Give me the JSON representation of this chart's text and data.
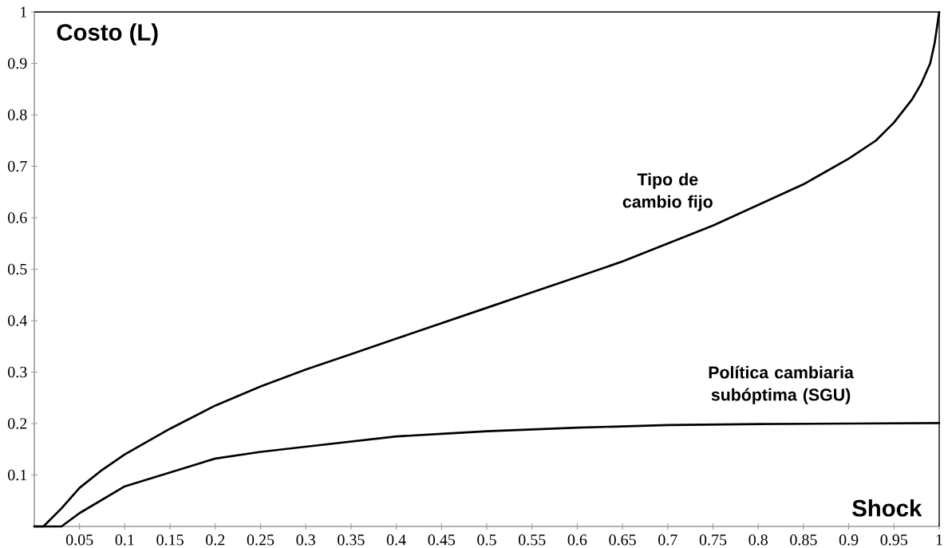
{
  "chart_data": {
    "type": "line",
    "xlabel": "Shock",
    "ylabel": "Costo (L)",
    "xlim": [
      0,
      1
    ],
    "ylim": [
      0,
      1
    ],
    "xticks": [
      0.05,
      0.1,
      0.15,
      0.2,
      0.25,
      0.3,
      0.35,
      0.4,
      0.45,
      0.5,
      0.55,
      0.6,
      0.65,
      0.7,
      0.75,
      0.8,
      0.85,
      0.9,
      0.95,
      1
    ],
    "yticks": [
      0.1,
      0.2,
      0.3,
      0.4,
      0.5,
      0.6,
      0.7,
      0.8,
      0.9,
      1
    ],
    "line_style": "solid",
    "series": [
      {
        "name": "Tipo de cambio fijo",
        "color": "#000000",
        "x": [
          0,
          0.01,
          0.03,
          0.05,
          0.075,
          0.1,
          0.15,
          0.2,
          0.25,
          0.3,
          0.35,
          0.4,
          0.45,
          0.5,
          0.55,
          0.6,
          0.65,
          0.7,
          0.75,
          0.8,
          0.85,
          0.9,
          0.93,
          0.95,
          0.97,
          0.98,
          0.99,
          0.995,
          1
        ],
        "values": [
          0,
          0,
          0.035,
          0.075,
          0.11,
          0.14,
          0.19,
          0.235,
          0.272,
          0.305,
          0.335,
          0.365,
          0.395,
          0.425,
          0.455,
          0.485,
          0.515,
          0.55,
          0.585,
          0.625,
          0.665,
          0.715,
          0.75,
          0.785,
          0.83,
          0.86,
          0.9,
          0.94,
          1
        ]
      },
      {
        "name": "Política cambiaria subóptima (SGU)",
        "color": "#000000",
        "x": [
          0,
          0.03,
          0.05,
          0.1,
          0.15,
          0.2,
          0.25,
          0.3,
          0.35,
          0.4,
          0.45,
          0.5,
          0.6,
          0.7,
          0.8,
          0.9,
          1
        ],
        "values": [
          0,
          0,
          0.026,
          0.078,
          0.105,
          0.132,
          0.145,
          0.155,
          0.165,
          0.175,
          0.18,
          0.185,
          0.192,
          0.197,
          0.199,
          0.2,
          0.201
        ]
      }
    ]
  }
}
